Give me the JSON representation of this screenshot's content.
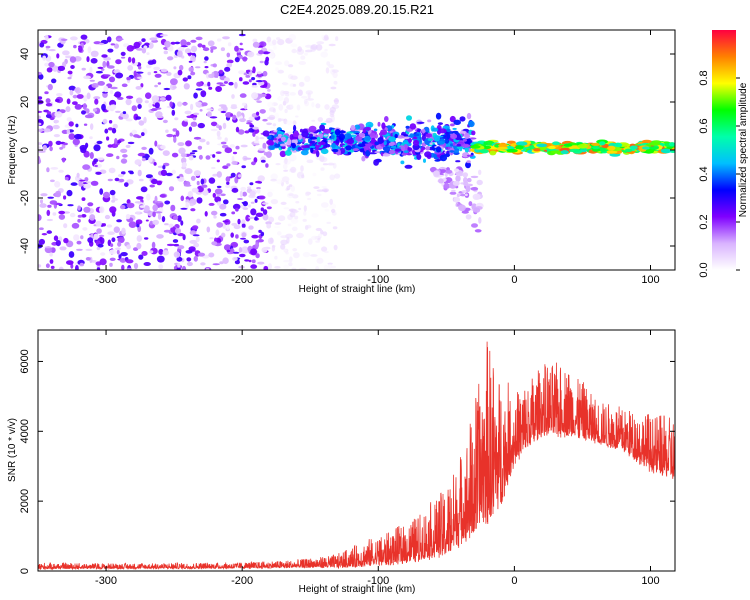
{
  "title": "C2E4.2025.089.20.15.R21",
  "chart_data": [
    {
      "type": "heatmap",
      "xlabel": "Height of straight line (km)",
      "ylabel": "Frequency (Hz)",
      "xlim": [
        -350,
        118
      ],
      "ylim": [
        -50,
        50
      ],
      "xticks": [
        -300,
        -200,
        -100,
        0,
        100
      ],
      "yticks": [
        -40,
        -20,
        0,
        20,
        40
      ],
      "colorbar": {
        "label": "Normalized spectral amplitude",
        "range": [
          0,
          1
        ],
        "ticks": [
          "0.0",
          "0.2",
          "0.4",
          "0.6",
          "0.8"
        ],
        "colors": [
          "#ffffff",
          "#d9b3ff",
          "#7f00ff",
          "#0000ff",
          "#00bfff",
          "#00ffaa",
          "#00ff00",
          "#ffff00",
          "#ff8000",
          "#ff0040"
        ]
      },
      "regions": [
        {
          "x_from": -350,
          "x_to": -180,
          "y_from": -50,
          "y_to": 48,
          "amplitude": 0.12,
          "note_visible": false
        },
        {
          "x_from": -180,
          "x_to": -130,
          "y_from": -50,
          "y_to": 48,
          "amplitude": 0.03
        },
        {
          "x_from": -180,
          "x_to": -30,
          "y_center": 4,
          "y_spread": 5,
          "amplitude": 0.35
        },
        {
          "x_from": -60,
          "x_to": -25,
          "y_center": -25,
          "y_spread": 10,
          "amplitude": 0.12
        },
        {
          "x_from": -30,
          "x_to": 118,
          "y_center": 1,
          "y_spread": 1.5,
          "amplitude": 0.9
        }
      ]
    },
    {
      "type": "line",
      "xlabel": "Height of straight line (km)",
      "ylabel": "SNR (10 * v/v)",
      "xlim": [
        -350,
        118
      ],
      "ylim": [
        0,
        6900
      ],
      "xticks": [
        -300,
        -200,
        -100,
        0,
        100
      ],
      "yticks": [
        0,
        2000,
        4000,
        6000
      ],
      "series": [
        {
          "color": "#e8322a",
          "envelope": [
            {
              "x": -350,
              "lo": 50,
              "hi": 250
            },
            {
              "x": -300,
              "lo": 60,
              "hi": 230
            },
            {
              "x": -250,
              "lo": 60,
              "hi": 240
            },
            {
              "x": -200,
              "lo": 70,
              "hi": 260
            },
            {
              "x": -160,
              "lo": 80,
              "hi": 330
            },
            {
              "x": -130,
              "lo": 80,
              "hi": 500
            },
            {
              "x": -110,
              "lo": 100,
              "hi": 900
            },
            {
              "x": -90,
              "lo": 150,
              "hi": 1200
            },
            {
              "x": -70,
              "lo": 250,
              "hi": 1700
            },
            {
              "x": -50,
              "lo": 400,
              "hi": 2500
            },
            {
              "x": -35,
              "lo": 800,
              "hi": 4000
            },
            {
              "x": -20,
              "lo": 1200,
              "hi": 6900
            },
            {
              "x": -10,
              "lo": 1800,
              "hi": 5800
            },
            {
              "x": 0,
              "lo": 3000,
              "hi": 5200
            },
            {
              "x": 20,
              "lo": 3800,
              "hi": 6000
            },
            {
              "x": 40,
              "lo": 3800,
              "hi": 6000
            },
            {
              "x": 60,
              "lo": 3600,
              "hi": 5000
            },
            {
              "x": 80,
              "lo": 3400,
              "hi": 4800
            },
            {
              "x": 100,
              "lo": 2800,
              "hi": 4600
            },
            {
              "x": 118,
              "lo": 2500,
              "hi": 4500
            }
          ]
        }
      ]
    }
  ]
}
